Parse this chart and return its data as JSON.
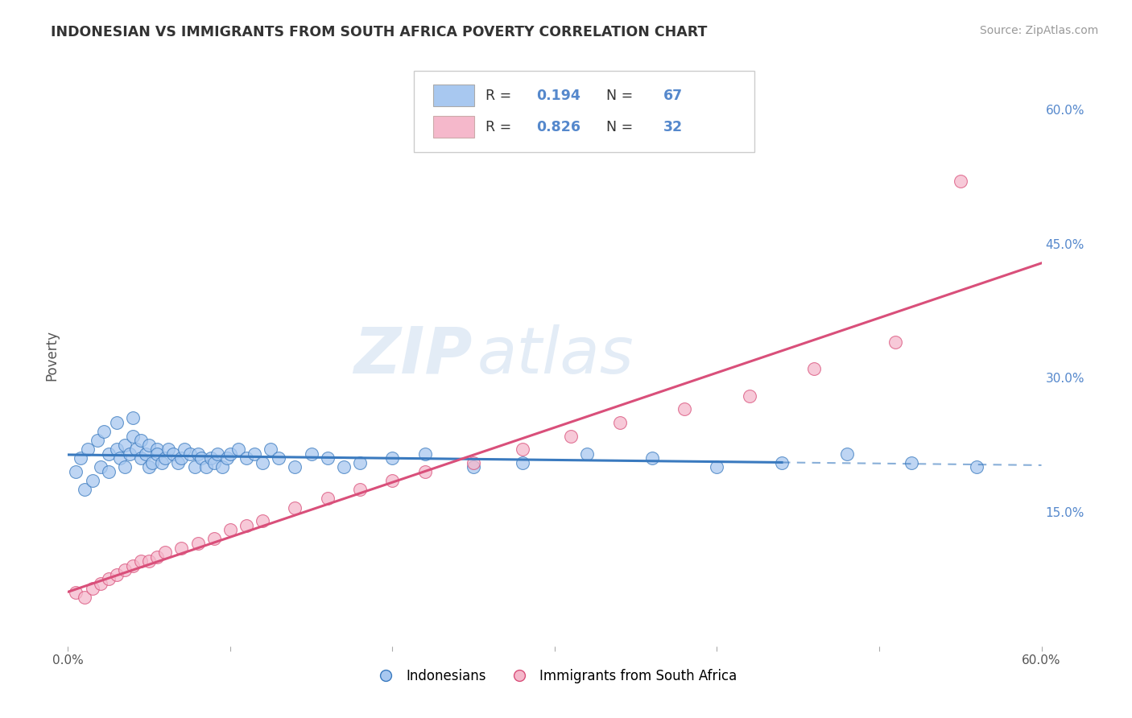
{
  "title": "INDONESIAN VS IMMIGRANTS FROM SOUTH AFRICA POVERTY CORRELATION CHART",
  "source_text": "Source: ZipAtlas.com",
  "ylabel": "Poverty",
  "xlim": [
    0.0,
    0.6
  ],
  "ylim": [
    0.0,
    0.65
  ],
  "y_ticks_right": [
    0.15,
    0.3,
    0.45,
    0.6
  ],
  "y_tick_labels_right": [
    "15.0%",
    "30.0%",
    "45.0%",
    "60.0%"
  ],
  "blue_r": 0.194,
  "pink_r": 0.826,
  "blue_n": 67,
  "pink_n": 32,
  "blue_color": "#a8c8f0",
  "pink_color": "#f5b8cb",
  "blue_line_color": "#3a7abf",
  "pink_line_color": "#d94f7a",
  "indonesians_label": "Indonesians",
  "south_africa_label": "Immigrants from South Africa",
  "background_color": "#ffffff",
  "grid_color": "#cccccc",
  "title_color": "#333333",
  "right_axis_color": "#5588cc",
  "blue_scatter_x": [
    0.005,
    0.008,
    0.01,
    0.012,
    0.015,
    0.018,
    0.02,
    0.022,
    0.025,
    0.025,
    0.03,
    0.03,
    0.032,
    0.035,
    0.035,
    0.038,
    0.04,
    0.04,
    0.042,
    0.045,
    0.045,
    0.048,
    0.05,
    0.05,
    0.052,
    0.055,
    0.055,
    0.058,
    0.06,
    0.062,
    0.065,
    0.068,
    0.07,
    0.072,
    0.075,
    0.078,
    0.08,
    0.082,
    0.085,
    0.088,
    0.09,
    0.092,
    0.095,
    0.098,
    0.1,
    0.105,
    0.11,
    0.115,
    0.12,
    0.125,
    0.13,
    0.14,
    0.15,
    0.16,
    0.17,
    0.18,
    0.2,
    0.22,
    0.25,
    0.28,
    0.32,
    0.36,
    0.4,
    0.44,
    0.48,
    0.52,
    0.56
  ],
  "blue_scatter_y": [
    0.195,
    0.21,
    0.175,
    0.22,
    0.185,
    0.23,
    0.2,
    0.24,
    0.195,
    0.215,
    0.22,
    0.25,
    0.21,
    0.225,
    0.2,
    0.215,
    0.235,
    0.255,
    0.22,
    0.23,
    0.21,
    0.215,
    0.225,
    0.2,
    0.205,
    0.22,
    0.215,
    0.205,
    0.21,
    0.22,
    0.215,
    0.205,
    0.21,
    0.22,
    0.215,
    0.2,
    0.215,
    0.21,
    0.2,
    0.21,
    0.205,
    0.215,
    0.2,
    0.21,
    0.215,
    0.22,
    0.21,
    0.215,
    0.205,
    0.22,
    0.21,
    0.2,
    0.215,
    0.21,
    0.2,
    0.205,
    0.21,
    0.215,
    0.2,
    0.205,
    0.215,
    0.21,
    0.2,
    0.205,
    0.215,
    0.205,
    0.2
  ],
  "pink_scatter_x": [
    0.005,
    0.01,
    0.015,
    0.02,
    0.025,
    0.03,
    0.035,
    0.04,
    0.045,
    0.05,
    0.055,
    0.06,
    0.07,
    0.08,
    0.09,
    0.1,
    0.11,
    0.12,
    0.14,
    0.16,
    0.18,
    0.2,
    0.22,
    0.25,
    0.28,
    0.31,
    0.34,
    0.38,
    0.42,
    0.46,
    0.51,
    0.55
  ],
  "pink_scatter_y": [
    0.06,
    0.055,
    0.065,
    0.07,
    0.075,
    0.08,
    0.085,
    0.09,
    0.095,
    0.095,
    0.1,
    0.105,
    0.11,
    0.115,
    0.12,
    0.13,
    0.135,
    0.14,
    0.155,
    0.165,
    0.175,
    0.185,
    0.195,
    0.205,
    0.22,
    0.235,
    0.25,
    0.265,
    0.28,
    0.31,
    0.34,
    0.52
  ]
}
